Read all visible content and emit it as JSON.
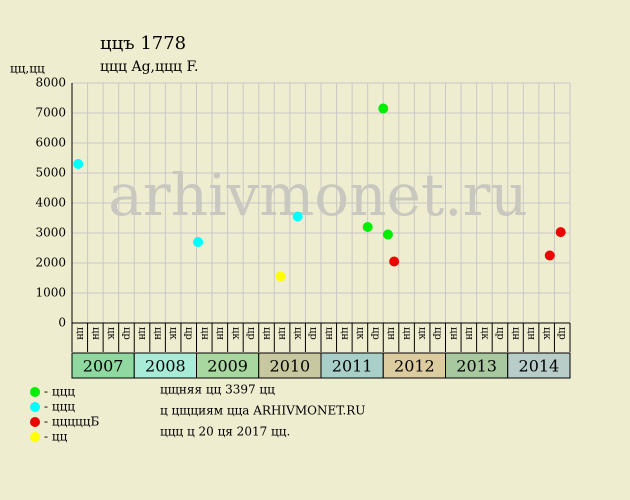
{
  "chart_data": {
    "type": "scatter",
    "title": "ццъ 1778",
    "subtitle": "ццц Ag,ццц F.",
    "y_label": "цц,цц",
    "watermark": "arhivmonet.ru",
    "categories": [
      "цн",
      "цн",
      "цк",
      "цр",
      "цн",
      "цн",
      "цк",
      "цр",
      "цн",
      "цн",
      "цк",
      "цр",
      "цн",
      "цн",
      "цк",
      "цр",
      "цн",
      "цн",
      "цк",
      "цр",
      "цн",
      "цн",
      "цк",
      "цр",
      "цн",
      "цн",
      "цк",
      "цр",
      "цн",
      "цн",
      "цк",
      "цр"
    ],
    "years": [
      "2007",
      "2008",
      "2009",
      "2010",
      "2011",
      "2012",
      "2013",
      "2014"
    ],
    "year_colors": [
      "#8fd8a0",
      "#a8ecd8",
      "#a8d8a0",
      "#c8c8a0",
      "#a8d0c8",
      "#dccca0",
      "#a8c8a0",
      "#b8ccc8"
    ],
    "xlim": [
      0,
      32
    ],
    "ylim": [
      0,
      8000
    ],
    "yticks": [
      0,
      1000,
      2000,
      3000,
      4000,
      5000,
      6000,
      7000,
      8000
    ],
    "grid": true,
    "series": [
      {
        "name": "- ццц",
        "color": "#00ee00",
        "x": [
          19.0,
          20.0,
          20.3
        ],
        "values": [
          3200,
          7150,
          2950
        ]
      },
      {
        "name": "- ццц",
        "color": "#00ffff",
        "x": [
          0.4,
          8.1,
          14.5
        ],
        "values": [
          5300,
          2700,
          3550
        ]
      },
      {
        "name": "- цццццБ",
        "color": "#ee0000",
        "x": [
          20.7,
          30.7,
          31.4
        ],
        "values": [
          2050,
          2250,
          3030
        ]
      },
      {
        "name": "- цц",
        "color": "#ffff00",
        "x": [
          13.4
        ],
        "values": [
          1550
        ]
      }
    ],
    "notes": [
      "цщняя цц 3397 цц",
      "ц цщциям ццa ARHIVMONET.RU",
      "ццц ц 20 ця 2017 цц."
    ]
  }
}
